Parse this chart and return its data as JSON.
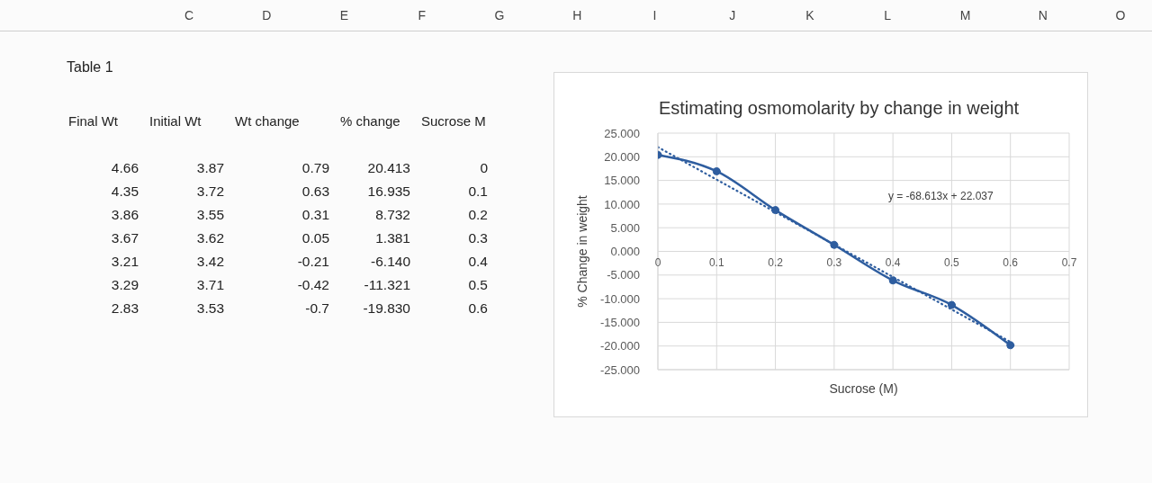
{
  "chart_data": [
    {
      "type": "other",
      "annotations": [
        "C",
        "D",
        "E",
        "F",
        "G",
        "H",
        "I",
        "J",
        "K",
        "L",
        "M",
        "N",
        "O"
      ]
    },
    {
      "type": "other",
      "title": "Table 1",
      "categories": [
        "Final Wt",
        "Initial Wt",
        "Wt change",
        "% change",
        "Sucrose M"
      ],
      "annotations": [
        "4.66",
        "3.87",
        "0.79",
        "20.413",
        "0",
        "4.35",
        "3.72",
        "0.63",
        "16.935",
        "0.1",
        "3.86",
        "3.55",
        "0.31",
        "8.732",
        "0.2",
        "3.67",
        "3.62",
        "0.05",
        "1.381",
        "0.3",
        "3.21",
        "3.42",
        "-0.21",
        "-6.140",
        "0.4",
        "3.29",
        "3.71",
        "-0.42",
        "-11.321",
        "0.5",
        "2.83",
        "3.53",
        "-0.7",
        "-19.830",
        "0.6"
      ]
    },
    {
      "type": "line",
      "title": "Estimating osmomolarity by change in weight",
      "xlabel": "Sucrose (M)",
      "ylabel": "% Change in weight",
      "x": [
        0,
        0.1,
        0.2,
        0.3,
        0.4,
        0.5,
        0.6
      ],
      "series": [
        {
          "color": "#2e5d9f",
          "values": [
            20.413,
            16.935,
            8.732,
            1.381,
            -6.14,
            -11.321,
            -19.83
          ]
        },
        {
          "type": "line",
          "x": [
            0,
            0.6
          ],
          "values": [
            22.037,
            -19.131
          ],
          "color": "#2e5d9f",
          "line_style": "dotted",
          "marker": "none"
        }
      ],
      "xlim": [
        0,
        0.7
      ],
      "xticks": [
        0,
        0.1,
        0.2,
        0.3,
        0.4,
        0.5,
        0.6,
        0.7
      ],
      "ylim": [
        -25,
        25
      ],
      "yticks": [
        {
          "value": -25,
          "label": "-25.000"
        },
        {
          "value": -20,
          "label": "-20.000"
        },
        {
          "value": -15,
          "label": "-15.000"
        },
        {
          "value": -10,
          "label": "-10.000"
        },
        {
          "value": -5,
          "label": "-5.000"
        },
        {
          "value": 0,
          "label": "0.000"
        },
        {
          "value": 5,
          "label": "5.000"
        },
        {
          "value": 10,
          "label": "10.000"
        },
        {
          "value": 15,
          "label": "15.000"
        },
        {
          "value": 20,
          "label": "20.000"
        },
        {
          "value": 25,
          "label": "25.000"
        }
      ],
      "grid": true,
      "marker": "circle",
      "annotations": [
        "y = -68.613x + 22.037"
      ]
    }
  ]
}
